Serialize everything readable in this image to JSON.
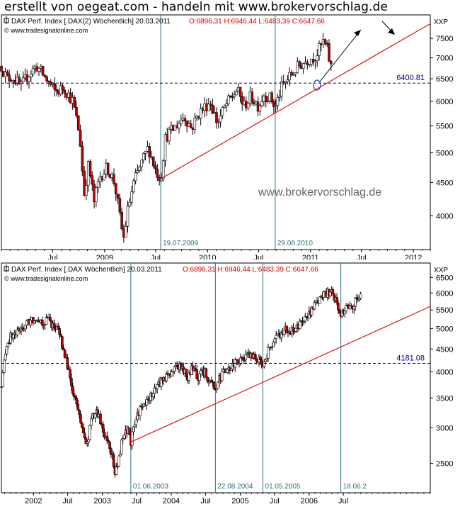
{
  "header": {
    "title": "erstellt von oegeat.com - handeln mit www.brokervorschlag.de"
  },
  "colors": {
    "up": "#ffffff",
    "down": "#c00000",
    "wick": "#000000",
    "trend": "#e01010",
    "vline": "#2e6e78",
    "hline": "#000080",
    "frame": "#000000",
    "ohlc_red": "#d00000"
  },
  "chart_data": [
    {
      "type": "candlestick",
      "instrument_label": "DAX Perf. Index [.DAX(2)  Wöchentlich] 20.03.2011",
      "ohlc_label": "O:6896,31 H:6946,44 L:6483,39 C:6647,66",
      "source_label": "© www.tradesignalonline.com",
      "watermark": "www.brokervorschlag.de",
      "axis_unit": "XXP",
      "y_scale": "log",
      "ylim": [
        3550,
        8150
      ],
      "y_ticks": [
        4000,
        4500,
        5000,
        5500,
        6000,
        6500,
        7000,
        7500
      ],
      "x_range": [
        "2008-01-01",
        "2012-03-01"
      ],
      "x_tick_labels": [
        {
          "date": "2008-07-01",
          "label": "Jul"
        },
        {
          "date": "2009-01-01",
          "label": "2009"
        },
        {
          "date": "2009-07-01",
          "label": "Jul"
        },
        {
          "date": "2010-01-01",
          "label": "2010"
        },
        {
          "date": "2010-07-01",
          "label": "Jul"
        },
        {
          "date": "2011-01-01",
          "label": "2011"
        },
        {
          "date": "2011-07-01",
          "label": "Jul"
        },
        {
          "date": "2012-01-01",
          "label": "2012"
        }
      ],
      "price_path": [
        [
          "2008-01-01",
          6800
        ],
        [
          "2008-01-20",
          6500
        ],
        [
          "2008-02-10",
          6550
        ],
        [
          "2008-03-10",
          6300
        ],
        [
          "2008-04-05",
          6600
        ],
        [
          "2008-05-05",
          6800
        ],
        [
          "2008-06-01",
          6550
        ],
        [
          "2008-07-10",
          6200
        ],
        [
          "2008-08-10",
          6300
        ],
        [
          "2008-09-10",
          6000
        ],
        [
          "2008-10-05",
          5300
        ],
        [
          "2008-10-20",
          4300
        ],
        [
          "2008-11-05",
          4800
        ],
        [
          "2008-11-25",
          4200
        ],
        [
          "2008-12-15",
          4600
        ],
        [
          "2009-01-10",
          4750
        ],
        [
          "2009-02-05",
          4500
        ],
        [
          "2009-03-01",
          3850
        ],
        [
          "2009-03-10",
          3700
        ],
        [
          "2009-03-25",
          4100
        ],
        [
          "2009-04-15",
          4500
        ],
        [
          "2009-05-10",
          4800
        ],
        [
          "2009-06-05",
          5100
        ],
        [
          "2009-07-01",
          4700
        ],
        [
          "2009-07-19",
          4560
        ],
        [
          "2009-08-05",
          5300
        ],
        [
          "2009-09-05",
          5450
        ],
        [
          "2009-10-10",
          5700
        ],
        [
          "2009-11-05",
          5450
        ],
        [
          "2009-12-01",
          5750
        ],
        [
          "2010-01-10",
          6000
        ],
        [
          "2010-02-05",
          5550
        ],
        [
          "2010-03-05",
          5900
        ],
        [
          "2010-04-15",
          6250
        ],
        [
          "2010-05-10",
          5900
        ],
        [
          "2010-06-05",
          6100
        ],
        [
          "2010-07-01",
          5900
        ],
        [
          "2010-07-20",
          6150
        ],
        [
          "2010-08-15",
          6050
        ],
        [
          "2010-08-29",
          5850
        ],
        [
          "2010-09-20",
          6300
        ],
        [
          "2010-10-20",
          6550
        ],
        [
          "2010-11-20",
          6800
        ],
        [
          "2010-12-20",
          6950
        ],
        [
          "2011-01-20",
          7050
        ],
        [
          "2011-02-15",
          7400
        ],
        [
          "2011-02-28",
          7250
        ],
        [
          "2011-03-10",
          6900
        ],
        [
          "2011-03-20",
          6647.66
        ]
      ],
      "reference_lines": [
        {
          "type": "horizontal",
          "value": 6400.81,
          "label": "6400.81"
        },
        {
          "type": "vertical",
          "date": "2009-07-19",
          "label": "19.07.2009"
        },
        {
          "type": "vertical",
          "date": "2010-08-29",
          "label": "29.08.2010"
        }
      ],
      "trendline": {
        "from": [
          "2009-07-19",
          4560
        ],
        "to": [
          "2012-03-01",
          7900
        ]
      }
    },
    {
      "type": "candlestick",
      "instrument_label": "DAX Perf. Index [.DAX  Wöchentlich] 20.03.2011",
      "ohlc_label": "O:6896,31 H:6946,44 L:6483,39 C:6647,66",
      "source_label": "© www.tradesignalonline.com",
      "axis_unit": "XXP",
      "y_scale": "log",
      "ylim": [
        2150,
        7000
      ],
      "y_ticks": [
        2500,
        3000,
        3500,
        4000,
        4500,
        5000,
        5500,
        6000,
        6500
      ],
      "x_range": [
        "2001-07-15",
        "2007-10-05"
      ],
      "x_tick_labels": [
        {
          "date": "2002-01-01",
          "label": "2002"
        },
        {
          "date": "2002-07-01",
          "label": "Jul"
        },
        {
          "date": "2003-01-01",
          "label": "2003"
        },
        {
          "date": "2003-07-01",
          "label": "Jul"
        },
        {
          "date": "2004-01-01",
          "label": "2004"
        },
        {
          "date": "2004-07-01",
          "label": "Jul"
        },
        {
          "date": "2005-01-01",
          "label": "2005"
        },
        {
          "date": "2005-07-01",
          "label": "Jul"
        },
        {
          "date": "2006-01-01",
          "label": "2006"
        },
        {
          "date": "2006-07-01",
          "label": "Jul"
        }
      ],
      "price_path": [
        [
          "2001-07-15",
          3700
        ],
        [
          "2001-08-10",
          4600
        ],
        [
          "2001-09-05",
          4800
        ],
        [
          "2001-10-10",
          4900
        ],
        [
          "2001-11-10",
          5050
        ],
        [
          "2001-12-15",
          5200
        ],
        [
          "2002-01-20",
          5300
        ],
        [
          "2002-02-20",
          5150
        ],
        [
          "2002-03-20",
          5250
        ],
        [
          "2002-04-20",
          5050
        ],
        [
          "2002-05-20",
          4900
        ],
        [
          "2002-06-15",
          4300
        ],
        [
          "2002-07-05",
          4100
        ],
        [
          "2002-07-25",
          3600
        ],
        [
          "2002-08-15",
          3400
        ],
        [
          "2002-09-10",
          3100
        ],
        [
          "2002-09-30",
          2800
        ],
        [
          "2002-10-10",
          2700
        ],
        [
          "2002-11-05",
          3150
        ],
        [
          "2002-12-05",
          3250
        ],
        [
          "2003-01-05",
          2950
        ],
        [
          "2003-02-10",
          2750
        ],
        [
          "2003-03-12",
          2350
        ],
        [
          "2003-03-28",
          2550
        ],
        [
          "2003-04-20",
          2850
        ],
        [
          "2003-05-20",
          3000
        ],
        [
          "2003-06-01",
          2800
        ],
        [
          "2003-07-10",
          3250
        ],
        [
          "2003-08-20",
          3400
        ],
        [
          "2003-09-25",
          3600
        ],
        [
          "2003-10-25",
          3750
        ],
        [
          "2003-11-25",
          3900
        ],
        [
          "2003-12-30",
          3950
        ],
        [
          "2004-01-25",
          4150
        ],
        [
          "2004-02-20",
          4100
        ],
        [
          "2004-03-25",
          3900
        ],
        [
          "2004-04-20",
          4050
        ],
        [
          "2004-05-25",
          3900
        ],
        [
          "2004-06-25",
          4000
        ],
        [
          "2004-07-20",
          3850
        ],
        [
          "2004-08-22",
          3680
        ],
        [
          "2004-09-25",
          3950
        ],
        [
          "2004-10-25",
          4000
        ],
        [
          "2004-11-25",
          4150
        ],
        [
          "2004-12-25",
          4250
        ],
        [
          "2005-01-25",
          4300
        ],
        [
          "2005-03-10",
          4350
        ],
        [
          "2005-04-20",
          4200
        ],
        [
          "2005-05-01",
          4200
        ],
        [
          "2005-06-05",
          4500
        ],
        [
          "2005-07-10",
          4750
        ],
        [
          "2005-08-10",
          4900
        ],
        [
          "2005-09-10",
          5000
        ],
        [
          "2005-10-20",
          4900
        ],
        [
          "2005-11-20",
          5200
        ],
        [
          "2005-12-30",
          5400
        ],
        [
          "2006-01-25",
          5600
        ],
        [
          "2006-03-05",
          5850
        ],
        [
          "2006-04-20",
          6050
        ],
        [
          "2006-05-15",
          5900
        ],
        [
          "2006-06-10",
          5450
        ],
        [
          "2006-06-18",
          5350
        ],
        [
          "2006-07-10",
          5600
        ],
        [
          "2006-08-10",
          5550
        ],
        [
          "2006-09-10",
          5800
        ],
        [
          "2006-10-05",
          5900
        ]
      ],
      "reference_lines": [
        {
          "type": "horizontal",
          "value": 4181.08,
          "label": "4181.08"
        },
        {
          "type": "vertical",
          "date": "2003-06-01",
          "label": "01.06.2003"
        },
        {
          "type": "vertical",
          "date": "2004-08-22",
          "label": "22.08.2004"
        },
        {
          "type": "vertical",
          "date": "2005-05-01",
          "label": "01.05.2005"
        },
        {
          "type": "vertical",
          "date": "2006-06-18",
          "label": "18.06.2"
        }
      ],
      "trendline": {
        "from": [
          "2003-06-01",
          2790
        ],
        "to": [
          "2007-10-05",
          5600
        ]
      }
    }
  ]
}
